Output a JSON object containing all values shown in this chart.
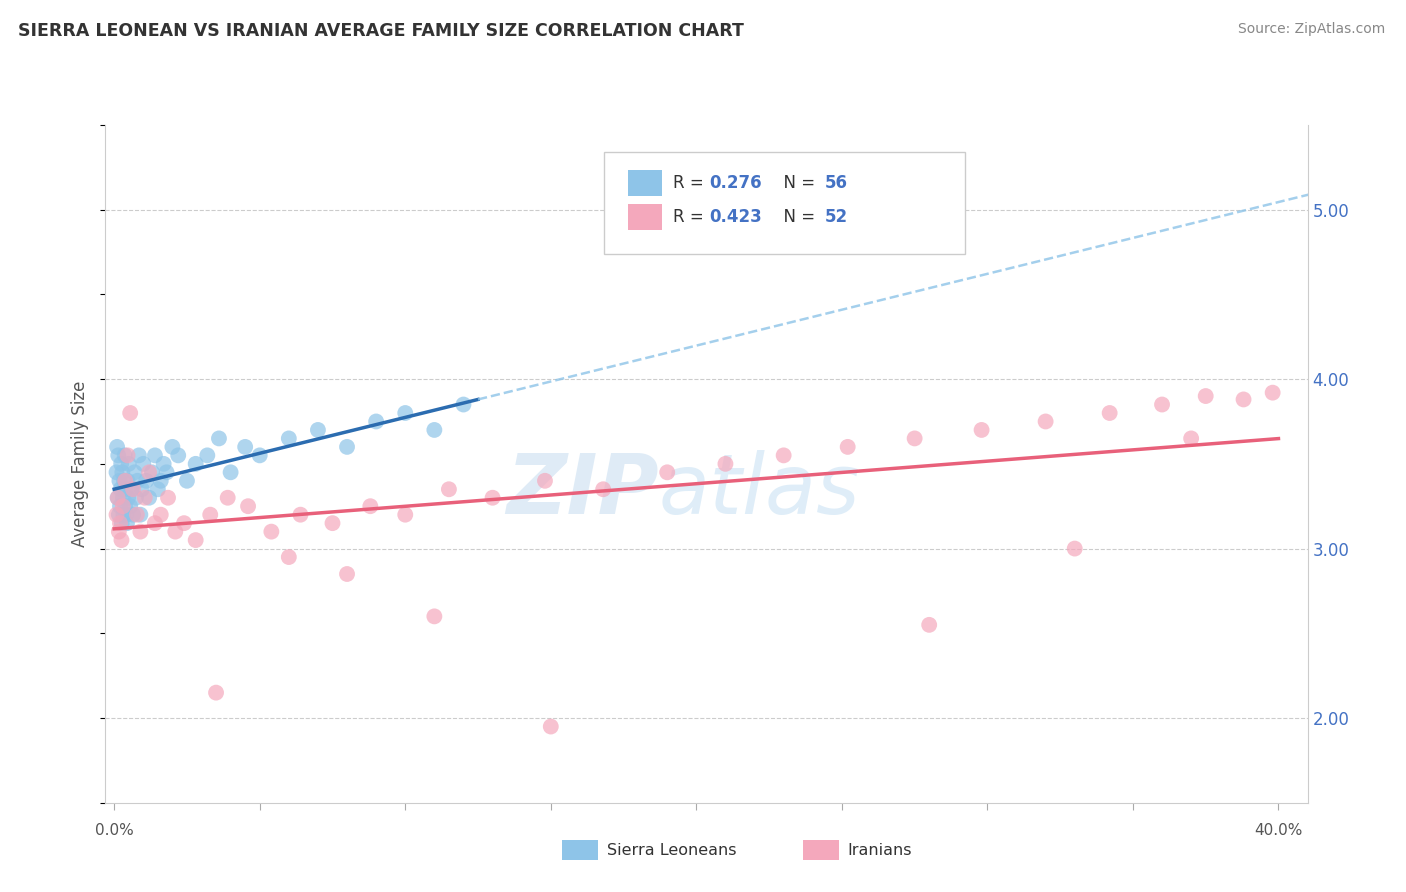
{
  "title": "SIERRA LEONEAN VS IRANIAN AVERAGE FAMILY SIZE CORRELATION CHART",
  "source": "Source: ZipAtlas.com",
  "ylabel": "Average Family Size",
  "legend_label1": "Sierra Leoneans",
  "legend_label2": "Iranians",
  "sl_color": "#8ec4e8",
  "iran_color": "#f4a8bc",
  "sl_line_color": "#2b6cb0",
  "iran_line_color": "#e8607a",
  "sl_line_dash_color": "#8ec4e8",
  "background": "#ffffff",
  "grid_color": "#cccccc",
  "right_tick_color": "#4472c4",
  "legend_text_color": "#4472c4",
  "title_color": "#333333",
  "watermark_color": "#d0e8f8",
  "sl_R": 0.276,
  "sl_N": 56,
  "iran_R": 0.423,
  "iran_N": 52,
  "ylim_low": 1.5,
  "ylim_high": 5.5,
  "xlim_low": -0.003,
  "xlim_high": 0.41,
  "yticks": [
    2.0,
    3.0,
    4.0,
    5.0
  ],
  "sl_x": [
    0.0008,
    0.001,
    0.0012,
    0.0014,
    0.0016,
    0.0018,
    0.002,
    0.0022,
    0.0024,
    0.0026,
    0.0028,
    0.003,
    0.0032,
    0.0034,
    0.0036,
    0.0038,
    0.004,
    0.0042,
    0.0044,
    0.0046,
    0.0048,
    0.005,
    0.0055,
    0.006,
    0.0065,
    0.007,
    0.0075,
    0.008,
    0.0085,
    0.009,
    0.0095,
    0.01,
    0.011,
    0.012,
    0.013,
    0.014,
    0.015,
    0.016,
    0.017,
    0.018,
    0.02,
    0.022,
    0.025,
    0.028,
    0.032,
    0.036,
    0.04,
    0.045,
    0.05,
    0.06,
    0.07,
    0.08,
    0.09,
    0.1,
    0.11,
    0.12
  ],
  "sl_y": [
    3.45,
    3.6,
    3.3,
    3.55,
    3.2,
    3.4,
    3.25,
    3.35,
    3.5,
    3.15,
    3.45,
    3.3,
    3.2,
    3.4,
    3.55,
    3.25,
    3.35,
    3.2,
    3.15,
    3.4,
    3.3,
    3.5,
    3.25,
    3.35,
    3.2,
    3.45,
    3.3,
    3.4,
    3.55,
    3.2,
    3.35,
    3.5,
    3.4,
    3.3,
    3.45,
    3.55,
    3.35,
    3.4,
    3.5,
    3.45,
    3.6,
    3.55,
    3.4,
    3.5,
    3.55,
    3.65,
    3.45,
    3.6,
    3.55,
    3.65,
    3.7,
    3.6,
    3.75,
    3.8,
    3.7,
    3.85
  ],
  "iran_x": [
    0.0008,
    0.0012,
    0.0016,
    0.002,
    0.0025,
    0.003,
    0.0038,
    0.0046,
    0.0055,
    0.0065,
    0.0078,
    0.009,
    0.0105,
    0.012,
    0.014,
    0.016,
    0.0185,
    0.021,
    0.024,
    0.028,
    0.033,
    0.039,
    0.046,
    0.054,
    0.064,
    0.075,
    0.088,
    0.1,
    0.115,
    0.13,
    0.148,
    0.168,
    0.19,
    0.21,
    0.23,
    0.252,
    0.275,
    0.298,
    0.32,
    0.342,
    0.36,
    0.375,
    0.388,
    0.398,
    0.06,
    0.08,
    0.11,
    0.15,
    0.035,
    0.28,
    0.33,
    0.37
  ],
  "iran_y": [
    3.2,
    3.3,
    3.1,
    3.15,
    3.05,
    3.25,
    3.4,
    3.55,
    3.8,
    3.35,
    3.2,
    3.1,
    3.3,
    3.45,
    3.15,
    3.2,
    3.3,
    3.1,
    3.15,
    3.05,
    3.2,
    3.3,
    3.25,
    3.1,
    3.2,
    3.15,
    3.25,
    3.2,
    3.35,
    3.3,
    3.4,
    3.35,
    3.45,
    3.5,
    3.55,
    3.6,
    3.65,
    3.7,
    3.75,
    3.8,
    3.85,
    3.9,
    3.88,
    3.92,
    2.95,
    2.85,
    2.6,
    1.95,
    2.15,
    2.55,
    3.0,
    3.65
  ]
}
